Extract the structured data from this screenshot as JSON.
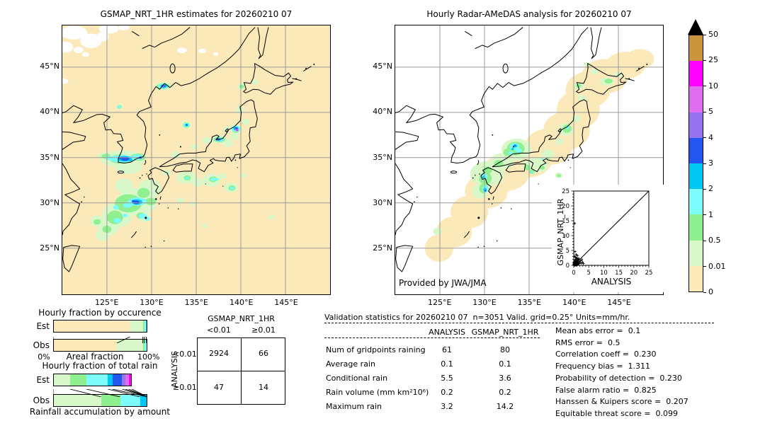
{
  "left_map": {
    "title": "GSMAP_NRT_1HR estimates for 20260210 07",
    "lat_ticks": [
      "45°N",
      "40°N",
      "35°N",
      "30°N",
      "25°N"
    ],
    "lon_ticks": [
      "125°E",
      "130°E",
      "135°E",
      "140°E",
      "145°E"
    ]
  },
  "right_map": {
    "title": "Hourly Radar-AMeDAS analysis for 20260210 07",
    "lat_ticks": [
      "45°N",
      "40°N",
      "35°N",
      "30°N",
      "25°N"
    ],
    "lon_ticks": [
      "125°E",
      "130°E",
      "135°E",
      "140°E",
      "145°E"
    ],
    "credit": "Provided by JWA/JMA"
  },
  "colorbar": {
    "tick_labels": [
      "50",
      "25",
      "10",
      "5",
      "4",
      "3",
      "2",
      "1",
      "0.5",
      "0.01",
      "0"
    ],
    "segment_colors_top_to_bottom": [
      "#c9963e",
      "#ff00ff",
      "#e06cf0",
      "#9673f0",
      "#2356f0",
      "#00c6f2",
      "#7dfcfc",
      "#8ef08e",
      "#d9f8c9",
      "#fce9ba"
    ],
    "overflow_arrow_color": "#000000"
  },
  "chart_data": [
    {
      "id": "hourly_fraction_by_occurrence",
      "type": "bar",
      "orientation": "horizontal-stacked",
      "title": "Hourly fraction by occurence",
      "xlabel": "Areal fraction",
      "x_tick_labels": [
        "0%",
        "100%"
      ],
      "categories": [
        "Est",
        "Obs"
      ],
      "segment_colors": [
        "#fce9ba",
        "#d9f8c9",
        "#8ef08e",
        "#7dfcfc",
        "#00c6f2"
      ],
      "series": [
        {
          "name": "Est",
          "segments_pct": [
            81.5,
            13.5,
            1.5,
            2.0,
            1.5
          ]
        },
        {
          "name": "Obs",
          "segments_pct": [
            67.5,
            27.5,
            1.5,
            2.5,
            1.0
          ]
        }
      ]
    },
    {
      "id": "hourly_fraction_of_total_rain",
      "type": "bar",
      "orientation": "horizontal-stacked",
      "title": "Hourly fraction of total rain",
      "caption": "Rainfall accumulation by amount",
      "categories": [
        "Est",
        "Obs"
      ],
      "segment_colors": [
        "#d9f8c9",
        "#8ef08e",
        "#7dfcfc",
        "#00c6f2",
        "#2356f0",
        "#9673f0",
        "#e06cf0",
        "#ff00ff"
      ],
      "series": [
        {
          "name": "Est",
          "segments_pct": [
            18,
            17.5,
            22.5,
            5,
            10,
            3.5,
            3.5,
            3.5
          ]
        },
        {
          "name": "Obs",
          "segments_pct": [
            51,
            20,
            21,
            8
          ]
        }
      ]
    },
    {
      "id": "contingency_table",
      "type": "table",
      "col_group": "GSMAP_NRT_1HR",
      "row_group": "ANALYSIS",
      "col_labels": [
        "<0.01",
        "≥0.01"
      ],
      "row_labels": [
        "<0.01",
        "≥0.01"
      ],
      "values": [
        [
          "2924",
          "66"
        ],
        [
          "47",
          "14"
        ]
      ]
    },
    {
      "id": "validation_statistics",
      "type": "table",
      "title": "Validation statistics for 20260210 07  n=3051 Valid. grid=0.25° Units=mm/hr.",
      "columns": [
        "ANALYSIS",
        "GSMAP_NRT_1HR"
      ],
      "rows": [
        {
          "label": "Num of gridpoints raining",
          "values": [
            "61",
            "80"
          ]
        },
        {
          "label": "Average rain",
          "values": [
            "0.1",
            "0.1"
          ]
        },
        {
          "label": "Conditional rain",
          "values": [
            "5.5",
            "3.6"
          ]
        },
        {
          "label": "Rain volume (mm km²10⁶)",
          "values": [
            "0.2",
            "0.2"
          ]
        },
        {
          "label": "Maximum rain",
          "values": [
            "3.2",
            "14.2"
          ]
        }
      ]
    },
    {
      "id": "summary_scores",
      "type": "table",
      "rows": [
        {
          "label": "Mean abs error",
          "value": "0.1"
        },
        {
          "label": "RMS error",
          "value": "0.5"
        },
        {
          "label": "Correlation coeff",
          "value": "0.230"
        },
        {
          "label": "Frequency bias",
          "value": "1.311"
        },
        {
          "label": "Probability of detection",
          "value": "0.230"
        },
        {
          "label": "False alarm ratio",
          "value": "0.825"
        },
        {
          "label": "Hanssen & Kuipers score",
          "value": "0.207"
        },
        {
          "label": "Equitable threat score",
          "value": "0.099"
        }
      ]
    },
    {
      "id": "inset_scatter",
      "type": "scatter",
      "xlabel": "ANALYSIS",
      "ylabel": "GSMAP_NRT_1HR",
      "xlim": [
        0,
        25
      ],
      "ylim": [
        0,
        25
      ],
      "tick_labels": [
        "0",
        "5",
        "10",
        "15",
        "20",
        "25"
      ],
      "identity_line": true,
      "points": [
        [
          0.05,
          0.05
        ],
        [
          0.1,
          0.1
        ],
        [
          0.15,
          0.05
        ],
        [
          0.05,
          0.2
        ],
        [
          0.2,
          0.1
        ],
        [
          0.1,
          0.3
        ],
        [
          0.3,
          0.05
        ],
        [
          0.2,
          0.25
        ],
        [
          0.05,
          0.45
        ],
        [
          0.35,
          0.2
        ],
        [
          0.15,
          0.55
        ],
        [
          0.45,
          0.1
        ],
        [
          0.3,
          0.4
        ],
        [
          0.1,
          0.7
        ],
        [
          0.5,
          0.3
        ],
        [
          0.25,
          0.65
        ],
        [
          0.6,
          0.1
        ],
        [
          0.4,
          0.55
        ],
        [
          0.15,
          0.9
        ],
        [
          0.7,
          0.25
        ],
        [
          0.55,
          0.5
        ],
        [
          0.3,
          0.85
        ],
        [
          0.8,
          0.1
        ],
        [
          0.65,
          0.7
        ],
        [
          0.2,
          1.1
        ],
        [
          0.9,
          0.4
        ],
        [
          0.5,
          0.95
        ],
        [
          1.0,
          0.15
        ],
        [
          0.75,
          0.85
        ],
        [
          0.35,
          1.3
        ],
        [
          1.1,
          0.55
        ],
        [
          0.85,
          1.05
        ],
        [
          1.2,
          0.2
        ],
        [
          0.6,
          1.5
        ],
        [
          1.3,
          0.8
        ],
        [
          1.0,
          1.25
        ],
        [
          0.45,
          1.75
        ],
        [
          1.45,
          0.4
        ],
        [
          1.15,
          1.5
        ],
        [
          0.7,
          1.95
        ],
        [
          1.6,
          1.0
        ],
        [
          1.3,
          1.8
        ],
        [
          0.9,
          2.2
        ],
        [
          1.75,
          0.6
        ],
        [
          1.5,
          2.05
        ],
        [
          1.05,
          2.5
        ],
        [
          1.9,
          1.3
        ],
        [
          0.55,
          2.75
        ],
        [
          2.1,
          0.9
        ],
        [
          1.65,
          2.3
        ],
        [
          0.3,
          3.0
        ],
        [
          2.3,
          1.6
        ],
        [
          1.2,
          3.3
        ],
        [
          2.5,
          0.7
        ],
        [
          0.8,
          3.6
        ],
        [
          2.7,
          1.9
        ],
        [
          0.45,
          4.6
        ],
        [
          2.9,
          1.1
        ],
        [
          3.2,
          0.6
        ],
        [
          0.3,
          14.1
        ]
      ]
    }
  ]
}
